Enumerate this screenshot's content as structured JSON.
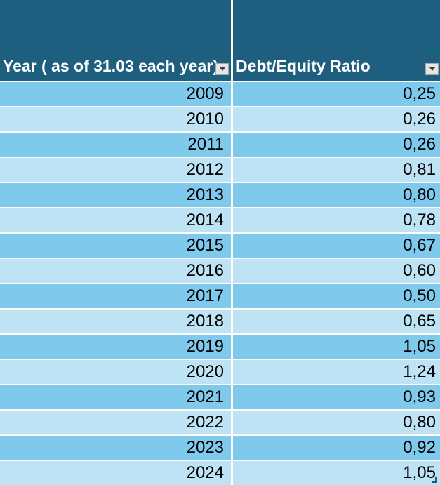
{
  "table": {
    "columns": [
      {
        "label": "Year ( as of 31.03 each year)"
      },
      {
        "label": "Debt/Equity Ratio"
      }
    ],
    "rows": [
      {
        "year": "2009",
        "ratio": "0,25"
      },
      {
        "year": "2010",
        "ratio": "0,26"
      },
      {
        "year": "2011",
        "ratio": "0,26"
      },
      {
        "year": "2012",
        "ratio": "0,81"
      },
      {
        "year": "2013",
        "ratio": "0,80"
      },
      {
        "year": "2014",
        "ratio": "0,78"
      },
      {
        "year": "2015",
        "ratio": "0,67"
      },
      {
        "year": "2016",
        "ratio": "0,60"
      },
      {
        "year": "2017",
        "ratio": "0,50"
      },
      {
        "year": "2018",
        "ratio": "0,65"
      },
      {
        "year": "2019",
        "ratio": "1,05"
      },
      {
        "year": "2020",
        "ratio": "1,24"
      },
      {
        "year": "2021",
        "ratio": "0,93"
      },
      {
        "year": "2022",
        "ratio": "0,80"
      },
      {
        "year": "2023",
        "ratio": "0,92"
      },
      {
        "year": "2024",
        "ratio": "1,05"
      }
    ]
  },
  "icons": {
    "filter_dropdown": "filter-dropdown-icon",
    "resize_handle": "table-resize-handle-icon"
  },
  "colors": {
    "header_background": "#1E5F80",
    "header_text": "#FFFFFF",
    "row_banded_dark": "#7FC9EC",
    "row_banded_light": "#BEE3F4",
    "cell_text": "#000000",
    "grid_gap": "#FFFFFF",
    "filter_button_background": "#E5E5E5",
    "filter_button_border": "#A6A6A6",
    "filter_arrow": "#3C3C3C",
    "resize_handle": "#1E5F80"
  }
}
